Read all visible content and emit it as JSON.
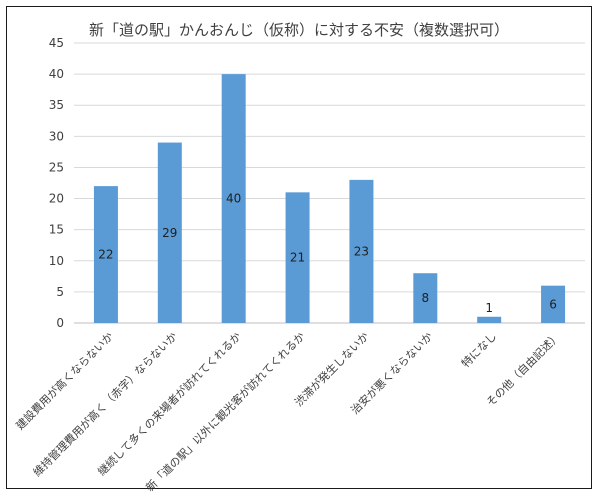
{
  "chart_data": {
    "type": "bar",
    "title": "新「道の駅」かんおんじ（仮称）に対する不安（複数選択可）",
    "categories": [
      "建設費用が高くならないか",
      "維持管理費用が高く（赤字）ならないか",
      "継続して多くの来場者が訪れてくれるか",
      "新「道の駅」以外に観光客が訪れてくれるか",
      "渋滞が発生しないか",
      "治安が悪くならないか",
      "特になし",
      "その他（自由記述）"
    ],
    "values": [
      22,
      29,
      40,
      21,
      23,
      8,
      1,
      6
    ],
    "data_labels": [
      "22",
      "29",
      "40",
      "21",
      "23",
      "8",
      "1",
      "6"
    ],
    "yticks": [
      "0",
      "5",
      "10",
      "15",
      "20",
      "25",
      "30",
      "35",
      "40",
      "45"
    ],
    "ylim": [
      0,
      45
    ],
    "grid": true,
    "colors": {
      "bar": "#5b9bd5",
      "grid": "#d9d9d9"
    }
  }
}
